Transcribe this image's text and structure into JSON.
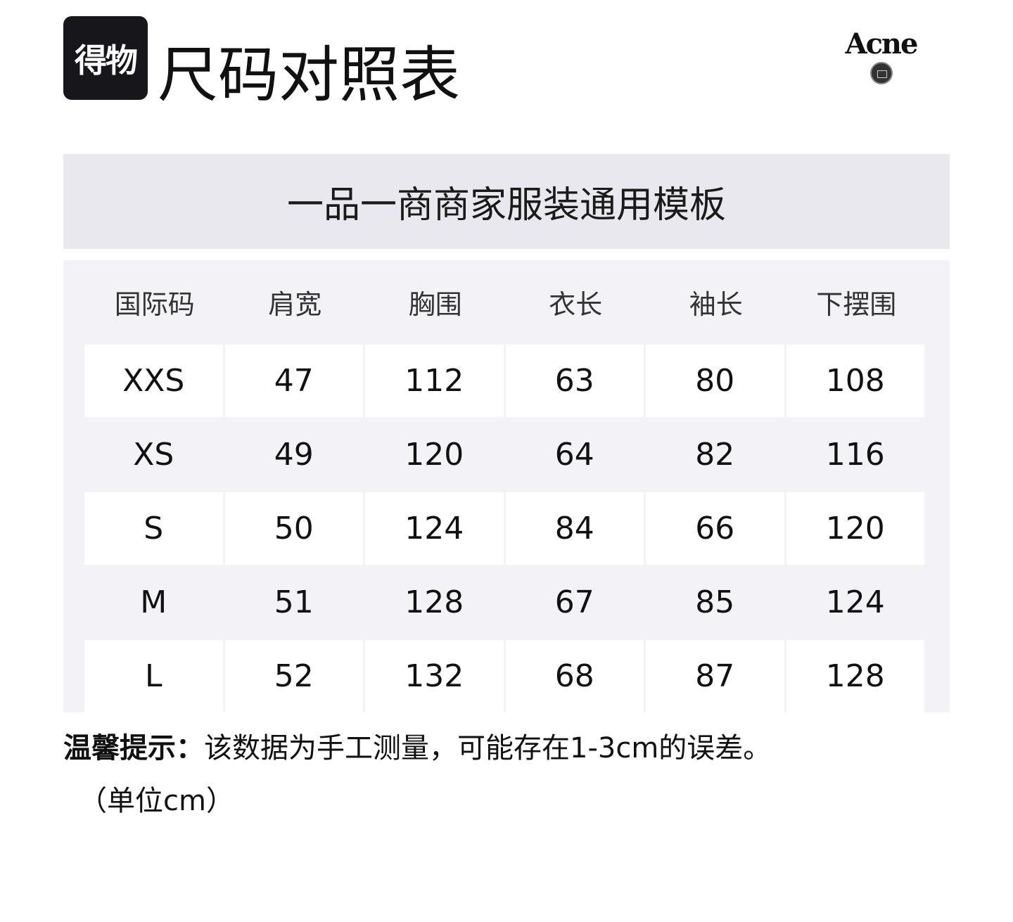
{
  "logo_text": "得物",
  "title": "尺码对照表",
  "brand": "Acne",
  "template_name": "一品一商商家服装通用模板",
  "table": {
    "headers": [
      "国际码",
      "肩宽",
      "胸围",
      "衣长",
      "袖长",
      "下摆围"
    ],
    "rows": [
      [
        "XXS",
        "47",
        "112",
        "63",
        "80",
        "108"
      ],
      [
        "XS",
        "49",
        "120",
        "64",
        "82",
        "116"
      ],
      [
        "S",
        "50",
        "124",
        "84",
        "66",
        "120"
      ],
      [
        "M",
        "51",
        "128",
        "67",
        "85",
        "124"
      ],
      [
        "L",
        "52",
        "132",
        "68",
        "87",
        "128"
      ]
    ]
  },
  "note": {
    "label": "温馨提示：",
    "text": "该数据为手工测量，可能存在1-3cm的误差。",
    "unit": "（单位cm）"
  }
}
